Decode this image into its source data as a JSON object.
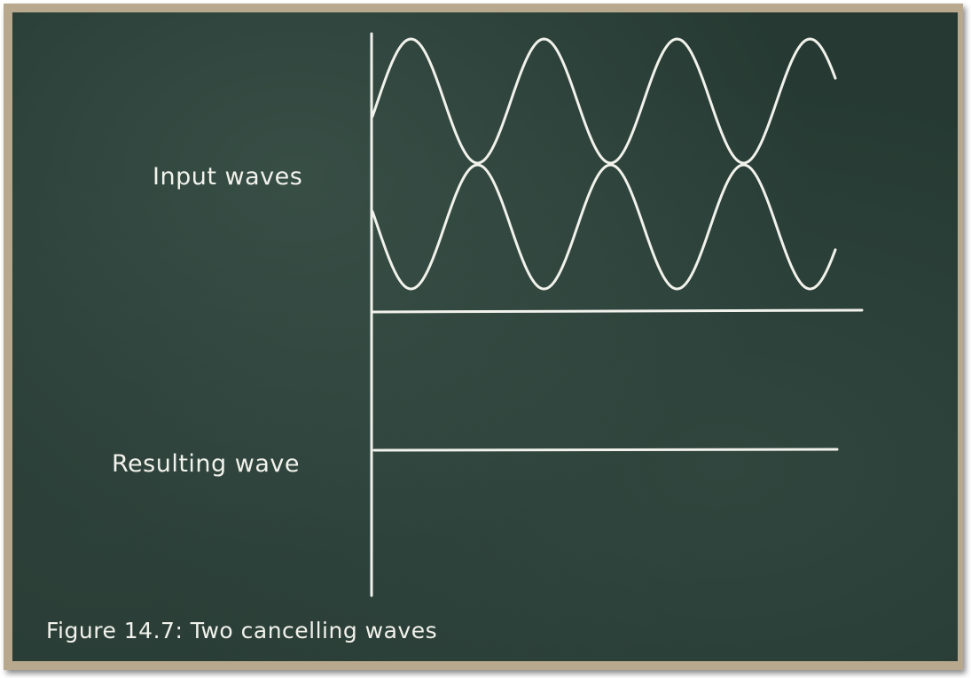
{
  "diagram": {
    "input_label": "Input waves",
    "result_label": "Resulting wave",
    "caption": "Figure 14.7: Two cancelling waves"
  },
  "colors": {
    "board": "#263a33",
    "frame": "#b8a98e",
    "chalk": "#f2f2ec"
  },
  "waves": {
    "input_wave_count": 2,
    "phase_relation": "opposite",
    "result": "flat"
  }
}
